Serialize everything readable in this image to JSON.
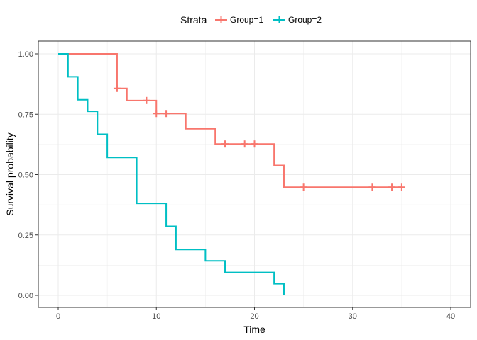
{
  "chart_data": {
    "type": "line",
    "subtype": "kaplan-meier-step",
    "xlabel": "Time",
    "ylabel": "Survival probability",
    "xlim": [
      0,
      40
    ],
    "ylim": [
      0,
      1
    ],
    "x_ticks": [
      0,
      10,
      20,
      30,
      40
    ],
    "x_tick_labels": [
      "0",
      "10",
      "20",
      "30",
      "40"
    ],
    "y_ticks": [
      0,
      0.25,
      0.5,
      0.75,
      1
    ],
    "y_tick_labels": [
      "0.00",
      "0.25",
      "0.50",
      "0.75",
      "1.00"
    ],
    "grid": true,
    "legend": {
      "title": "Strata",
      "position": "top"
    },
    "series": [
      {
        "name": "Group=1",
        "color": "#F8766D",
        "steps": [
          [
            0,
            1.0
          ],
          [
            6,
            0.857
          ],
          [
            7,
            0.807
          ],
          [
            10,
            0.753
          ],
          [
            13,
            0.69
          ],
          [
            16,
            0.627
          ],
          [
            22,
            0.538
          ],
          [
            23,
            0.448
          ],
          [
            35,
            0.448
          ]
        ],
        "censored": [
          [
            6,
            0.857
          ],
          [
            9,
            0.807
          ],
          [
            10,
            0.753
          ],
          [
            11,
            0.753
          ],
          [
            17,
            0.627
          ],
          [
            19,
            0.627
          ],
          [
            20,
            0.627
          ],
          [
            25,
            0.448
          ],
          [
            32,
            0.448
          ],
          [
            34,
            0.448
          ],
          [
            35,
            0.448
          ]
        ]
      },
      {
        "name": "Group=2",
        "color": "#00BFC4",
        "steps": [
          [
            0,
            1.0
          ],
          [
            1,
            0.905
          ],
          [
            2,
            0.81
          ],
          [
            3,
            0.762
          ],
          [
            4,
            0.667
          ],
          [
            5,
            0.571
          ],
          [
            8,
            0.381
          ],
          [
            11,
            0.286
          ],
          [
            12,
            0.19
          ],
          [
            15,
            0.143
          ],
          [
            17,
            0.095
          ],
          [
            22,
            0.048
          ],
          [
            23,
            0.0
          ]
        ],
        "censored": []
      }
    ]
  }
}
